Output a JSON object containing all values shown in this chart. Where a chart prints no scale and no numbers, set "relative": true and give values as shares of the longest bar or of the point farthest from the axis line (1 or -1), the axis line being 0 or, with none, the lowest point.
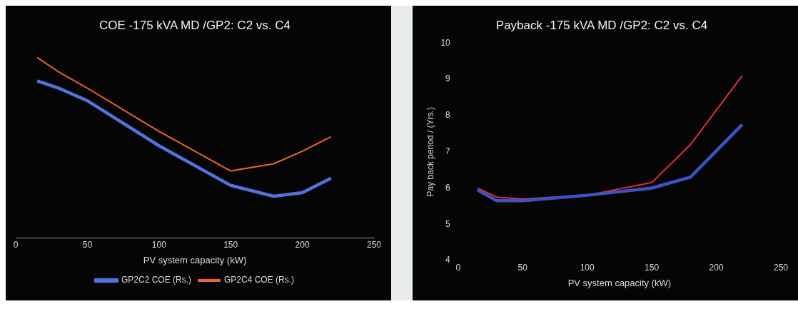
{
  "chart_data": [
    {
      "type": "line",
      "title": "COE -175 kVA MD /GP2: C2 vs. C4",
      "xlabel": "PV system capacity (kW)",
      "relative": true,
      "legend": "bottom",
      "xlim": [
        0,
        250
      ],
      "xticks": [
        0,
        50,
        100,
        150,
        200,
        250
      ],
      "x": [
        15,
        30,
        50,
        100,
        150,
        180,
        200,
        220
      ],
      "series": [
        {
          "name": "GP2C2 COE (Rs.)",
          "color": "#4f74dc",
          "values": [
            0.87,
            0.83,
            0.76,
            0.51,
            0.29,
            0.23,
            0.25,
            0.33
          ]
        },
        {
          "name": "GP2C4 COE (Rs.)",
          "color": "#f0622c",
          "values": [
            1,
            0.92,
            0.83,
            0.59,
            0.37,
            0.41,
            0.48,
            0.56
          ]
        }
      ]
    },
    {
      "type": "line",
      "title": "Payback -175 kVA MD /GP2: C2 vs. C4",
      "xlabel": "PV system capacity (kW)",
      "ylabel": "Pay back period / (Yrs.)",
      "xlim": [
        0,
        250
      ],
      "xticks": [
        0,
        50,
        100,
        150,
        200,
        250
      ],
      "ylim": [
        4,
        10
      ],
      "yticks": [
        4,
        5,
        6,
        7,
        8,
        9,
        10
      ],
      "x": [
        15,
        30,
        50,
        100,
        150,
        180,
        220
      ],
      "series": [
        {
          "color": "#3e52c4",
          "values": [
            5.95,
            5.65,
            5.65,
            5.8,
            6.0,
            6.3,
            7.75
          ]
        },
        {
          "color": "#e0302c",
          "values": [
            6.0,
            5.75,
            5.7,
            5.8,
            6.15,
            7.2,
            9.1
          ]
        }
      ]
    }
  ]
}
